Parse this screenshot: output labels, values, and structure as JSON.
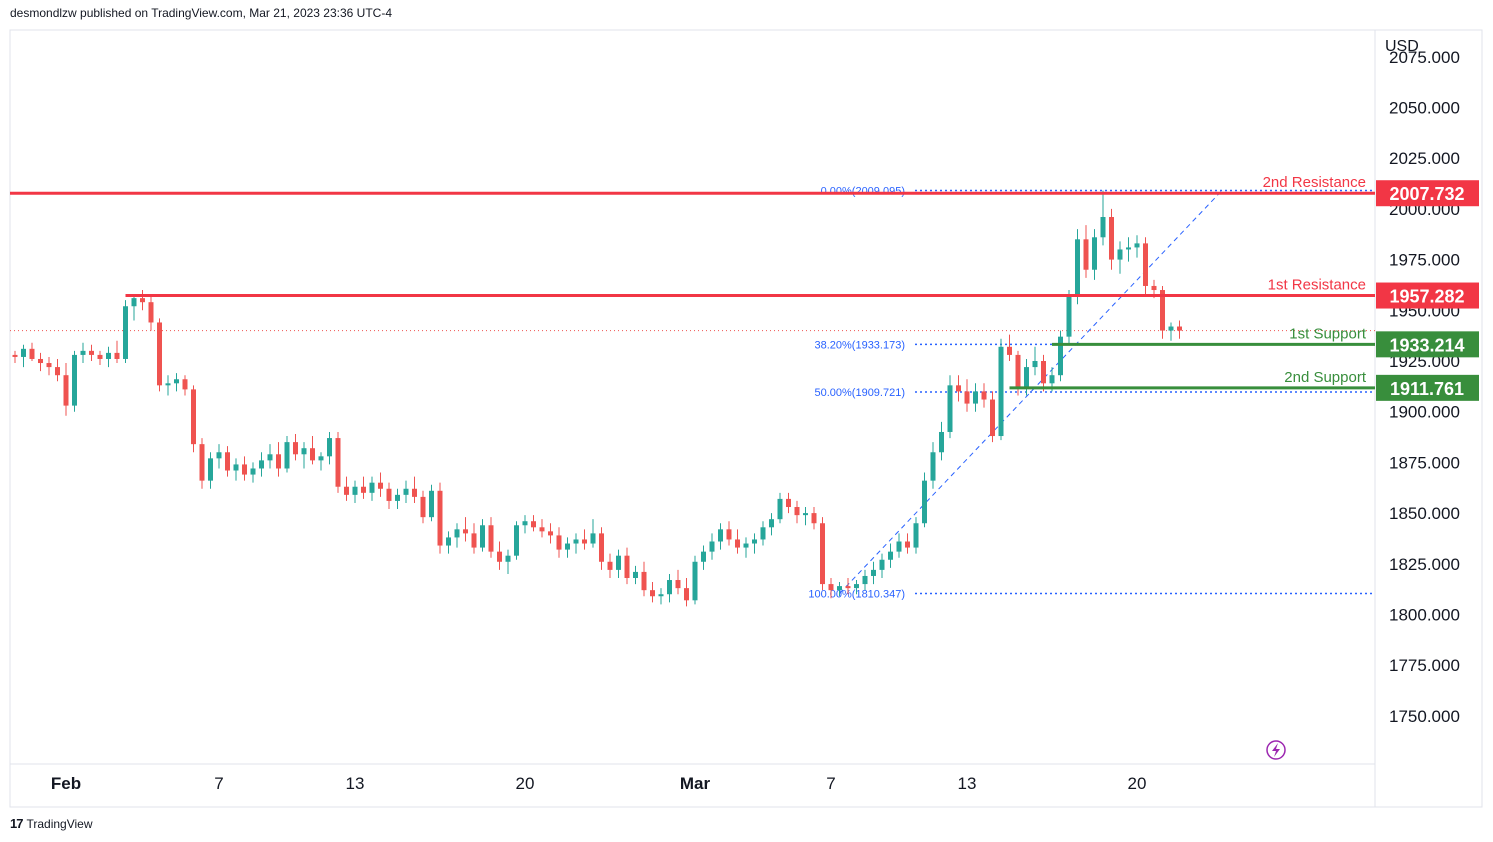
{
  "header": {
    "publisher_text": "desmondlzw published on TradingView.com, Mar 21, 2023 23:36 UTC-4"
  },
  "footer": {
    "brand": "TradingView"
  },
  "icons": {
    "brand_logo": "tradingview-logo-icon",
    "lightning": "lightning-icon"
  },
  "colors": {
    "up": "#26a69a",
    "down": "#ef5350",
    "resistance": "#f23645",
    "support": "#388e3c",
    "fib": "#2962ff"
  },
  "chart_data": {
    "type": "candlestick",
    "currency": "USD",
    "ylim": [
      1725,
      2075
    ],
    "y_ticks": [
      "1750.000",
      "1775.000",
      "1800.000",
      "1825.000",
      "1850.000",
      "1875.000",
      "1900.000",
      "1925.000",
      "1950.000",
      "1975.000",
      "2000.000",
      "2025.000",
      "2050.000",
      "2075.000"
    ],
    "x_ticks": [
      {
        "label": "Feb",
        "i": 6,
        "bold": true
      },
      {
        "label": "7",
        "i": 24,
        "bold": false
      },
      {
        "label": "13",
        "i": 40,
        "bold": false
      },
      {
        "label": "20",
        "i": 60,
        "bold": false
      },
      {
        "label": "Mar",
        "i": 80,
        "bold": true
      },
      {
        "label": "7",
        "i": 96,
        "bold": false
      },
      {
        "label": "13",
        "i": 112,
        "bold": false
      },
      {
        "label": "20",
        "i": 132,
        "bold": false
      }
    ],
    "last_price": 1940,
    "levels": [
      {
        "name": "2nd Resistance",
        "value": 2007.732,
        "label": "2007.732",
        "kind": "resistance",
        "start_i": 0
      },
      {
        "name": "1st Resistance",
        "value": 1957.282,
        "label": "1957.282",
        "kind": "resistance",
        "start_i": 13
      },
      {
        "name": "1st Support",
        "value": 1933.214,
        "label": "1933.214",
        "kind": "support",
        "start_i": 122
      },
      {
        "name": "2nd Support",
        "value": 1911.761,
        "label": "1911.761",
        "kind": "support",
        "start_i": 117
      }
    ],
    "fib_levels": [
      {
        "label": "0.00%(2009.095)",
        "value": 2009.095
      },
      {
        "label": "38.20%(1933.173)",
        "value": 1933.173
      },
      {
        "label": "50.00%(1909.721)",
        "value": 1909.721
      },
      {
        "label": "100.00%(1810.347)",
        "value": 1810.347
      }
    ],
    "fib_anchor": {
      "from_i": 97,
      "from_value": 1810.347,
      "to_i": 142,
      "to_value": 2009.095
    },
    "candles": [
      [
        1928,
        1930,
        1924,
        1927
      ],
      [
        1927,
        1933,
        1922,
        1931
      ],
      [
        1931,
        1934,
        1925,
        1926
      ],
      [
        1926,
        1929,
        1920,
        1924
      ],
      [
        1924,
        1927,
        1918,
        1922
      ],
      [
        1922,
        1926,
        1915,
        1918
      ],
      [
        1918,
        1924,
        1898,
        1903
      ],
      [
        1903,
        1930,
        1900,
        1928
      ],
      [
        1928,
        1934,
        1924,
        1930
      ],
      [
        1930,
        1933,
        1925,
        1928
      ],
      [
        1928,
        1930,
        1923,
        1926
      ],
      [
        1926,
        1932,
        1922,
        1929
      ],
      [
        1929,
        1935,
        1924,
        1926
      ],
      [
        1926,
        1955,
        1924,
        1952
      ],
      [
        1952,
        1958,
        1945,
        1956
      ],
      [
        1956,
        1960,
        1950,
        1954
      ],
      [
        1954,
        1957,
        1940,
        1944
      ],
      [
        1944,
        1946,
        1910,
        1913
      ],
      [
        1913,
        1918,
        1908,
        1914
      ],
      [
        1914,
        1919,
        1910,
        1916
      ],
      [
        1916,
        1918,
        1908,
        1911
      ],
      [
        1911,
        1913,
        1880,
        1884
      ],
      [
        1884,
        1887,
        1862,
        1866
      ],
      [
        1866,
        1880,
        1862,
        1877
      ],
      [
        1877,
        1884,
        1872,
        1880
      ],
      [
        1880,
        1883,
        1868,
        1871
      ],
      [
        1871,
        1877,
        1866,
        1874
      ],
      [
        1874,
        1878,
        1866,
        1869
      ],
      [
        1869,
        1875,
        1865,
        1872
      ],
      [
        1872,
        1880,
        1868,
        1876
      ],
      [
        1876,
        1884,
        1872,
        1879
      ],
      [
        1879,
        1885,
        1868,
        1872
      ],
      [
        1872,
        1888,
        1870,
        1885
      ],
      [
        1885,
        1889,
        1876,
        1879
      ],
      [
        1879,
        1885,
        1872,
        1882
      ],
      [
        1882,
        1888,
        1874,
        1876
      ],
      [
        1876,
        1880,
        1871,
        1878
      ],
      [
        1878,
        1890,
        1874,
        1887
      ],
      [
        1887,
        1890,
        1860,
        1863
      ],
      [
        1863,
        1868,
        1856,
        1859
      ],
      [
        1859,
        1866,
        1855,
        1863
      ],
      [
        1863,
        1868,
        1857,
        1860
      ],
      [
        1860,
        1868,
        1856,
        1865
      ],
      [
        1865,
        1870,
        1858,
        1862
      ],
      [
        1862,
        1865,
        1852,
        1856
      ],
      [
        1856,
        1862,
        1852,
        1859
      ],
      [
        1859,
        1866,
        1855,
        1862
      ],
      [
        1862,
        1868,
        1855,
        1858
      ],
      [
        1858,
        1861,
        1845,
        1848
      ],
      [
        1848,
        1864,
        1846,
        1861
      ],
      [
        1861,
        1865,
        1830,
        1834
      ],
      [
        1834,
        1841,
        1830,
        1838
      ],
      [
        1838,
        1845,
        1833,
        1842
      ],
      [
        1842,
        1848,
        1836,
        1840
      ],
      [
        1840,
        1845,
        1830,
        1833
      ],
      [
        1833,
        1847,
        1831,
        1844
      ],
      [
        1844,
        1848,
        1828,
        1831
      ],
      [
        1831,
        1836,
        1822,
        1826
      ],
      [
        1826,
        1832,
        1820,
        1829
      ],
      [
        1829,
        1846,
        1827,
        1844
      ],
      [
        1844,
        1849,
        1840,
        1846
      ],
      [
        1846,
        1849,
        1841,
        1843
      ],
      [
        1843,
        1847,
        1838,
        1841
      ],
      [
        1841,
        1845,
        1835,
        1839
      ],
      [
        1839,
        1843,
        1828,
        1832
      ],
      [
        1832,
        1838,
        1828,
        1835
      ],
      [
        1835,
        1840,
        1830,
        1837
      ],
      [
        1837,
        1842,
        1832,
        1835
      ],
      [
        1835,
        1847,
        1833,
        1840
      ],
      [
        1840,
        1843,
        1822,
        1826
      ],
      [
        1826,
        1830,
        1818,
        1822
      ],
      [
        1822,
        1832,
        1818,
        1829
      ],
      [
        1829,
        1833,
        1815,
        1818
      ],
      [
        1818,
        1824,
        1815,
        1821
      ],
      [
        1821,
        1826,
        1809,
        1812
      ],
      [
        1812,
        1816,
        1806,
        1809
      ],
      [
        1809,
        1813,
        1805,
        1810
      ],
      [
        1810,
        1820,
        1806,
        1817
      ],
      [
        1817,
        1822,
        1810,
        1813
      ],
      [
        1813,
        1818,
        1804,
        1807
      ],
      [
        1807,
        1829,
        1805,
        1826
      ],
      [
        1826,
        1834,
        1822,
        1831
      ],
      [
        1831,
        1840,
        1827,
        1836
      ],
      [
        1836,
        1845,
        1832,
        1842
      ],
      [
        1842,
        1846,
        1834,
        1837
      ],
      [
        1837,
        1842,
        1830,
        1833
      ],
      [
        1833,
        1838,
        1828,
        1835
      ],
      [
        1835,
        1840,
        1830,
        1837
      ],
      [
        1837,
        1846,
        1834,
        1843
      ],
      [
        1843,
        1850,
        1839,
        1847
      ],
      [
        1847,
        1860,
        1845,
        1857
      ],
      [
        1857,
        1860,
        1850,
        1853
      ],
      [
        1853,
        1856,
        1845,
        1849
      ],
      [
        1849,
        1853,
        1844,
        1850
      ],
      [
        1850,
        1853,
        1842,
        1845
      ],
      [
        1845,
        1848,
        1812,
        1815
      ],
      [
        1815,
        1818,
        1808,
        1812
      ],
      [
        1812,
        1816,
        1809,
        1814
      ],
      [
        1814,
        1818,
        1810,
        1813
      ],
      [
        1813,
        1817,
        1810,
        1815
      ],
      [
        1815,
        1822,
        1812,
        1819
      ],
      [
        1819,
        1826,
        1815,
        1822
      ],
      [
        1822,
        1830,
        1818,
        1827
      ],
      [
        1827,
        1835,
        1823,
        1831
      ],
      [
        1831,
        1840,
        1828,
        1836
      ],
      [
        1836,
        1840,
        1830,
        1833
      ],
      [
        1833,
        1848,
        1830,
        1845
      ],
      [
        1845,
        1870,
        1843,
        1866
      ],
      [
        1866,
        1885,
        1862,
        1880
      ],
      [
        1880,
        1895,
        1876,
        1890
      ],
      [
        1890,
        1918,
        1887,
        1913
      ],
      [
        1913,
        1918,
        1905,
        1910
      ],
      [
        1910,
        1916,
        1900,
        1904
      ],
      [
        1904,
        1914,
        1900,
        1910
      ],
      [
        1910,
        1914,
        1902,
        1906
      ],
      [
        1906,
        1910,
        1885,
        1888
      ],
      [
        1888,
        1936,
        1886,
        1932
      ],
      [
        1932,
        1938,
        1925,
        1928
      ],
      [
        1928,
        1930,
        1908,
        1912
      ],
      [
        1912,
        1926,
        1908,
        1922
      ],
      [
        1922,
        1932,
        1918,
        1925
      ],
      [
        1925,
        1928,
        1910,
        1914
      ],
      [
        1914,
        1922,
        1910,
        1918
      ],
      [
        1918,
        1940,
        1915,
        1937
      ],
      [
        1937,
        1960,
        1933,
        1957
      ],
      [
        1957,
        1990,
        1953,
        1985
      ],
      [
        1985,
        1992,
        1966,
        1970
      ],
      [
        1970,
        1990,
        1965,
        1986
      ],
      [
        1986,
        2009,
        1982,
        1996
      ],
      [
        1996,
        2000,
        1970,
        1975
      ],
      [
        1975,
        1984,
        1968,
        1980
      ],
      [
        1980,
        1986,
        1974,
        1981
      ],
      [
        1981,
        1987,
        1976,
        1983
      ],
      [
        1983,
        1986,
        1958,
        1962
      ],
      [
        1962,
        1965,
        1956,
        1960
      ],
      [
        1960,
        1962,
        1936,
        1940
      ],
      [
        1940,
        1944,
        1935,
        1942
      ],
      [
        1942,
        1945,
        1936,
        1940
      ]
    ]
  }
}
